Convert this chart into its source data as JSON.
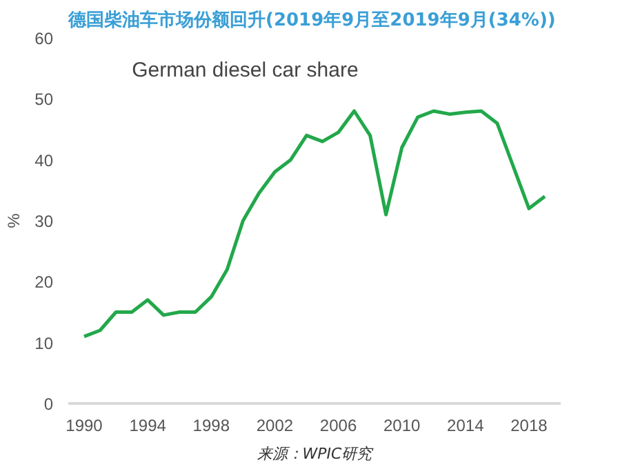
{
  "chart_data": {
    "type": "line",
    "title": "德国柴油车市场份额回升(2019年9月至2019年9月(34%))",
    "subtitle": "German diesel car share",
    "ylabel": "%",
    "x": [
      1990,
      1991,
      1992,
      1993,
      1994,
      1995,
      1996,
      1997,
      1998,
      1999,
      2000,
      2001,
      2002,
      2003,
      2004,
      2005,
      2006,
      2007,
      2008,
      2009,
      2010,
      2011,
      2012,
      2013,
      2014,
      2015,
      2016,
      2017,
      2018,
      2019
    ],
    "series": [
      {
        "color": "#22a84a",
        "values": [
          11,
          12,
          15,
          15,
          17,
          14.5,
          15,
          15,
          17.5,
          22,
          30,
          34.5,
          38,
          40,
          44,
          43,
          44.5,
          48,
          44,
          31,
          42,
          47,
          48,
          47.5,
          47.8,
          48,
          46,
          39,
          32,
          34
        ]
      }
    ],
    "xlim": [
      1989,
      2020
    ],
    "xticks": [
      1990,
      1994,
      1998,
      2002,
      2006,
      2010,
      2014,
      2018
    ],
    "ylim": [
      0,
      60
    ],
    "yticks": [
      0,
      10,
      20,
      30,
      40,
      50,
      60
    ],
    "line_style": "solid",
    "annotations": [
      "来源：WPIC研究"
    ]
  }
}
